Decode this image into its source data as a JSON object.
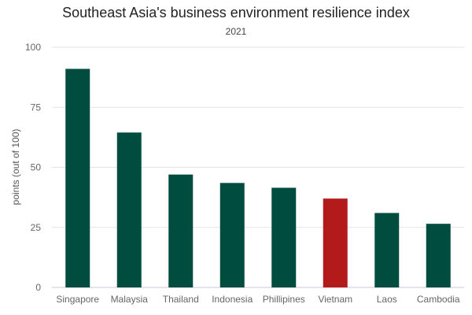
{
  "chart_data": {
    "type": "bar",
    "title": "Southeast Asia's business environment resilience index",
    "subtitle": "2021",
    "xlabel": "",
    "ylabel": "points (out of 100)",
    "ylim": [
      0,
      100
    ],
    "yticks": [
      0,
      25,
      50,
      75,
      100
    ],
    "categories": [
      "Singapore",
      "Malaysia",
      "Thailand",
      "Indonesia",
      "Phillipines",
      "Vietnam",
      "Laos",
      "Cambodia"
    ],
    "values": [
      91,
      64.5,
      47,
      43.5,
      41.5,
      37,
      31,
      26.5
    ],
    "grid": true,
    "colors": {
      "default": "#004d3f",
      "highlight": "#b31b1b",
      "gridline": "#e3e3e3",
      "baseline": "#c8c8dc",
      "tick_label": "#666666"
    },
    "highlight_category": "Vietnam"
  }
}
